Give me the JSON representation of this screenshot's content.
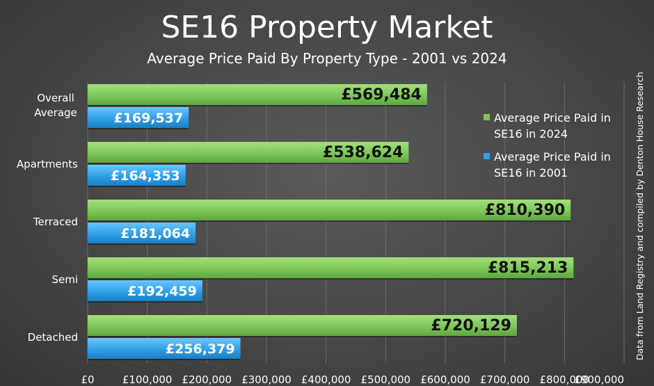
{
  "chart_data": {
    "type": "bar",
    "orientation": "horizontal",
    "title": "SE16 Property Market",
    "subtitle": "Average Price Paid By Property Type - 2001 vs 2024",
    "categories": [
      "Overall Average",
      "Apartments",
      "Terraced",
      "Semi",
      "Detached"
    ],
    "series": [
      {
        "name": "Average Price Paid in SE16 in 2024",
        "values": [
          569484,
          538624,
          810390,
          815213,
          720129
        ],
        "labels": [
          "£569,484",
          "£538,624",
          "£810,390",
          "£815,213",
          "£720,129"
        ],
        "color": "#7cc75a"
      },
      {
        "name": "Average Price Paid in SE16 in 2001",
        "values": [
          169537,
          164353,
          181064,
          192459,
          256379
        ],
        "labels": [
          "£169,537",
          "£164,353",
          "£181,064",
          "£192,459",
          "£256,379"
        ],
        "color": "#2f9fe6"
      }
    ],
    "xlim": [
      0,
      900000
    ],
    "xticks": [
      0,
      100000,
      200000,
      300000,
      400000,
      500000,
      600000,
      700000,
      800000,
      900000
    ],
    "xtick_labels": [
      "£0",
      "£100,000",
      "£200,000",
      "£300,000",
      "£400,000",
      "£500,000",
      "£600,000",
      "£700,000",
      "£800,000",
      "£900,000"
    ],
    "grid": true,
    "legend_position": "right",
    "source_note": "Data from Land Registry and compiled by Denton House Research"
  }
}
